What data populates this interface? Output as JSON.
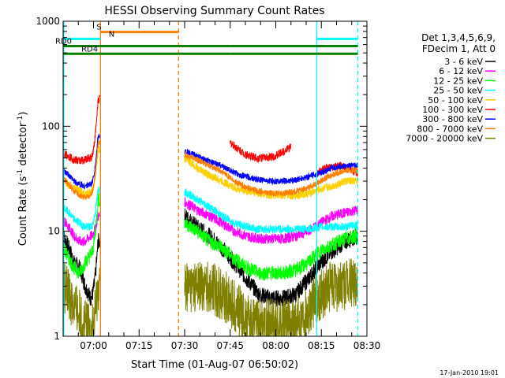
{
  "chart_data": {
    "type": "line",
    "title": "HESSI Observing Summary Count Rates",
    "xlabel": "Start Time (01-Aug-07 06:50:02)",
    "ylabel": "Count Rate (s⁻¹ detector⁻¹)",
    "ylabel_main": "Count Rate (s",
    "ylabel_sup1": "-1",
    "ylabel_mid": " detector",
    "ylabel_sup2": "-1",
    "ylabel_end": ")",
    "yscale": "log",
    "ylim": [
      1,
      1000
    ],
    "y_ticks": [
      "1",
      "10",
      "100",
      "1000"
    ],
    "xlim_minutes": [
      0,
      100
    ],
    "x_ticks": [
      {
        "label": "07:00",
        "min": 10
      },
      {
        "label": "07:15",
        "min": 25
      },
      {
        "label": "07:30",
        "min": 40
      },
      {
        "label": "07:45",
        "min": 55
      },
      {
        "label": "08:00",
        "min": 70
      },
      {
        "label": "08:15",
        "min": 85
      },
      {
        "label": "08:30",
        "min": 100
      }
    ],
    "legend_header": [
      "Det 1,3,4,5,6,9,",
      "FDecim 1, Att 0"
    ],
    "gaps": [
      [
        27,
        40
      ]
    ],
    "vlines": [
      {
        "min": 12.3,
        "color": "#ff8000",
        "dash": "none"
      },
      {
        "min": 38,
        "color": "#ff8000",
        "dash": "dashed"
      },
      {
        "min": 0.2,
        "color": "#00ffff",
        "dash": "none"
      },
      {
        "min": 83.5,
        "color": "#00ffff",
        "dash": "none"
      },
      {
        "min": 97,
        "color": "#00ffff",
        "dash": "dashed"
      }
    ],
    "flag_bars": [
      {
        "label": "S",
        "color": "#ff8000",
        "y": 790,
        "segments": [
          [
            12.3,
            38
          ]
        ],
        "label_min": 11
      }
    ],
    "flag_bars_2": [
      {
        "label": "N",
        "color": "#00ffff",
        "y": 680,
        "segments": [
          [
            0,
            12.3
          ],
          [
            83.5,
            97
          ]
        ],
        "label_min": 15
      },
      {
        "label": "RD0",
        "color": "#008000",
        "y": 580,
        "segments": [
          [
            0,
            38
          ],
          [
            38,
            55
          ],
          [
            55,
            83.5
          ],
          [
            83.5,
            97
          ]
        ],
        "label_min": 0
      },
      {
        "label": "RD4",
        "color": "#008000",
        "y": 490,
        "segments": [
          [
            0,
            38
          ],
          [
            38,
            55
          ],
          [
            55,
            83.5
          ],
          [
            83.5,
            97
          ]
        ],
        "label_min": 6
      }
    ],
    "series": [
      {
        "name": "3 - 6 keV",
        "color": "#000000",
        "pre": [
          9,
          7,
          5,
          4.5,
          3,
          2.3
        ],
        "post": [
          14,
          11,
          9,
          7,
          5,
          3.5,
          2.5,
          2.3,
          2.3,
          2.5,
          3.5,
          5,
          6.5,
          8,
          9
        ],
        "noise": 0.08,
        "peak": 8
      },
      {
        "name": "6 - 12 keV",
        "color": "#ff00ff",
        "pre": [
          13,
          11,
          9,
          8,
          8,
          9
        ],
        "post": [
          19,
          16,
          14,
          12,
          10,
          9,
          8.5,
          8.5,
          8.5,
          9,
          10,
          12,
          14,
          15,
          16
        ],
        "noise": 0.05,
        "peak": 14
      },
      {
        "name": "12 - 25 keV",
        "color": "#00ff00",
        "pre": [
          7,
          5.5,
          4.5,
          4,
          5,
          6
        ],
        "post": [
          12,
          10,
          8,
          7,
          5.5,
          4.5,
          4,
          4,
          4,
          4.3,
          5,
          6.5,
          7.5,
          8.5,
          9
        ],
        "noise": 0.07,
        "peak": 20
      },
      {
        "name": "25 - 50 keV",
        "color": "#00ffff",
        "pre": [
          17,
          15,
          13,
          12,
          11,
          11
        ],
        "post": [
          24,
          20,
          17,
          14,
          12,
          11,
          10.5,
          10.5,
          10.5,
          10.5,
          10.5,
          11,
          11,
          11,
          11.5
        ],
        "noise": 0.04,
        "peak": 25
      },
      {
        "name": "50 - 100 keV",
        "color": "#ffd000",
        "pre": [
          30,
          28,
          26,
          24,
          23,
          23
        ],
        "post": [
          50,
          40,
          34,
          30,
          26,
          24,
          23,
          22,
          22,
          22,
          23,
          25,
          27,
          30,
          30
        ],
        "noise": 0.04,
        "peak": 60
      },
      {
        "name": "100 - 300 keV",
        "color": "#ff0000",
        "pre": [
          55,
          52,
          48,
          47,
          48,
          50
        ],
        "post_before": [],
        "post_sub": [
          [
            55,
            75,
            70,
            62,
            55,
            52,
            50,
            50,
            51,
            53,
            58,
            64
          ],
          [
            83.5,
            97,
            36,
            40,
            42,
            40,
            36
          ]
        ],
        "noise": 0.04,
        "peak": 180
      },
      {
        "name": "300 - 800 keV",
        "color": "#0000ff",
        "pre": [
          38,
          34,
          30,
          28,
          27,
          28
        ],
        "post": [
          58,
          52,
          46,
          42,
          36,
          33,
          31,
          30,
          30,
          31,
          33,
          36,
          40,
          42,
          42
        ],
        "noise": 0.03,
        "peak": 80
      },
      {
        "name": "800 - 7000 keV",
        "color": "#ff8000",
        "pre": [
          32,
          28,
          24,
          22,
          21,
          22
        ],
        "post": [
          54,
          48,
          42,
          37,
          30,
          26,
          24,
          23,
          23,
          24,
          26,
          30,
          35,
          38,
          38
        ],
        "noise": 0.03,
        "peak": 70
      },
      {
        "name": "7000 - 20000 keV",
        "color": "#808000",
        "pre": [
          3,
          2.5,
          2,
          1.6,
          1.3,
          1.2
        ],
        "post": [
          3,
          3,
          3,
          2.5,
          2,
          1.4,
          1.3,
          1.3,
          1.3,
          1.3,
          1.8,
          2.5,
          3,
          3,
          3.5
        ],
        "noise": 0.25,
        "peak": 3
      }
    ],
    "legend_placement": "right",
    "grid": false,
    "footer_stamp": "17-Jan-2010 19:01"
  }
}
